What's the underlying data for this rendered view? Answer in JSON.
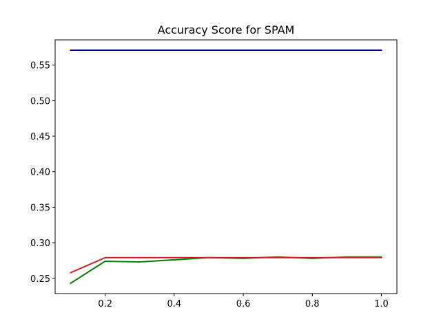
{
  "chart_data": {
    "type": "line",
    "title": "Accuracy Score for SPAM",
    "xlabel": "",
    "ylabel": "",
    "xlim": [
      0.055,
      1.045
    ],
    "ylim": [
      0.2285,
      0.5855
    ],
    "xticks": [
      0.2,
      0.4,
      0.6,
      0.8,
      1.0
    ],
    "xtick_labels": [
      "0.2",
      "0.4",
      "0.6",
      "0.8",
      "1.0"
    ],
    "yticks": [
      0.25,
      0.3,
      0.35,
      0.4,
      0.45,
      0.5,
      0.55
    ],
    "ytick_labels": [
      "0.25",
      "0.30",
      "0.35",
      "0.40",
      "0.45",
      "0.50",
      "0.55"
    ],
    "grid": false,
    "legend": "none",
    "x": [
      0.1,
      0.2,
      0.3,
      0.4,
      0.5,
      0.6,
      0.7,
      0.8,
      0.9,
      1.0
    ],
    "series": [
      {
        "color": "#00008b",
        "values": [
          0.571,
          0.571,
          0.571,
          0.571,
          0.571,
          0.571,
          0.571,
          0.571,
          0.571,
          0.571
        ]
      },
      {
        "color": "#008000",
        "values": [
          0.243,
          0.274,
          0.273,
          0.276,
          0.279,
          0.278,
          0.28,
          0.278,
          0.28,
          0.28
        ]
      },
      {
        "color": "#d62020",
        "values": [
          0.258,
          0.279,
          0.279,
          0.279,
          0.279,
          0.279,
          0.279,
          0.279,
          0.279,
          0.279
        ]
      }
    ]
  }
}
